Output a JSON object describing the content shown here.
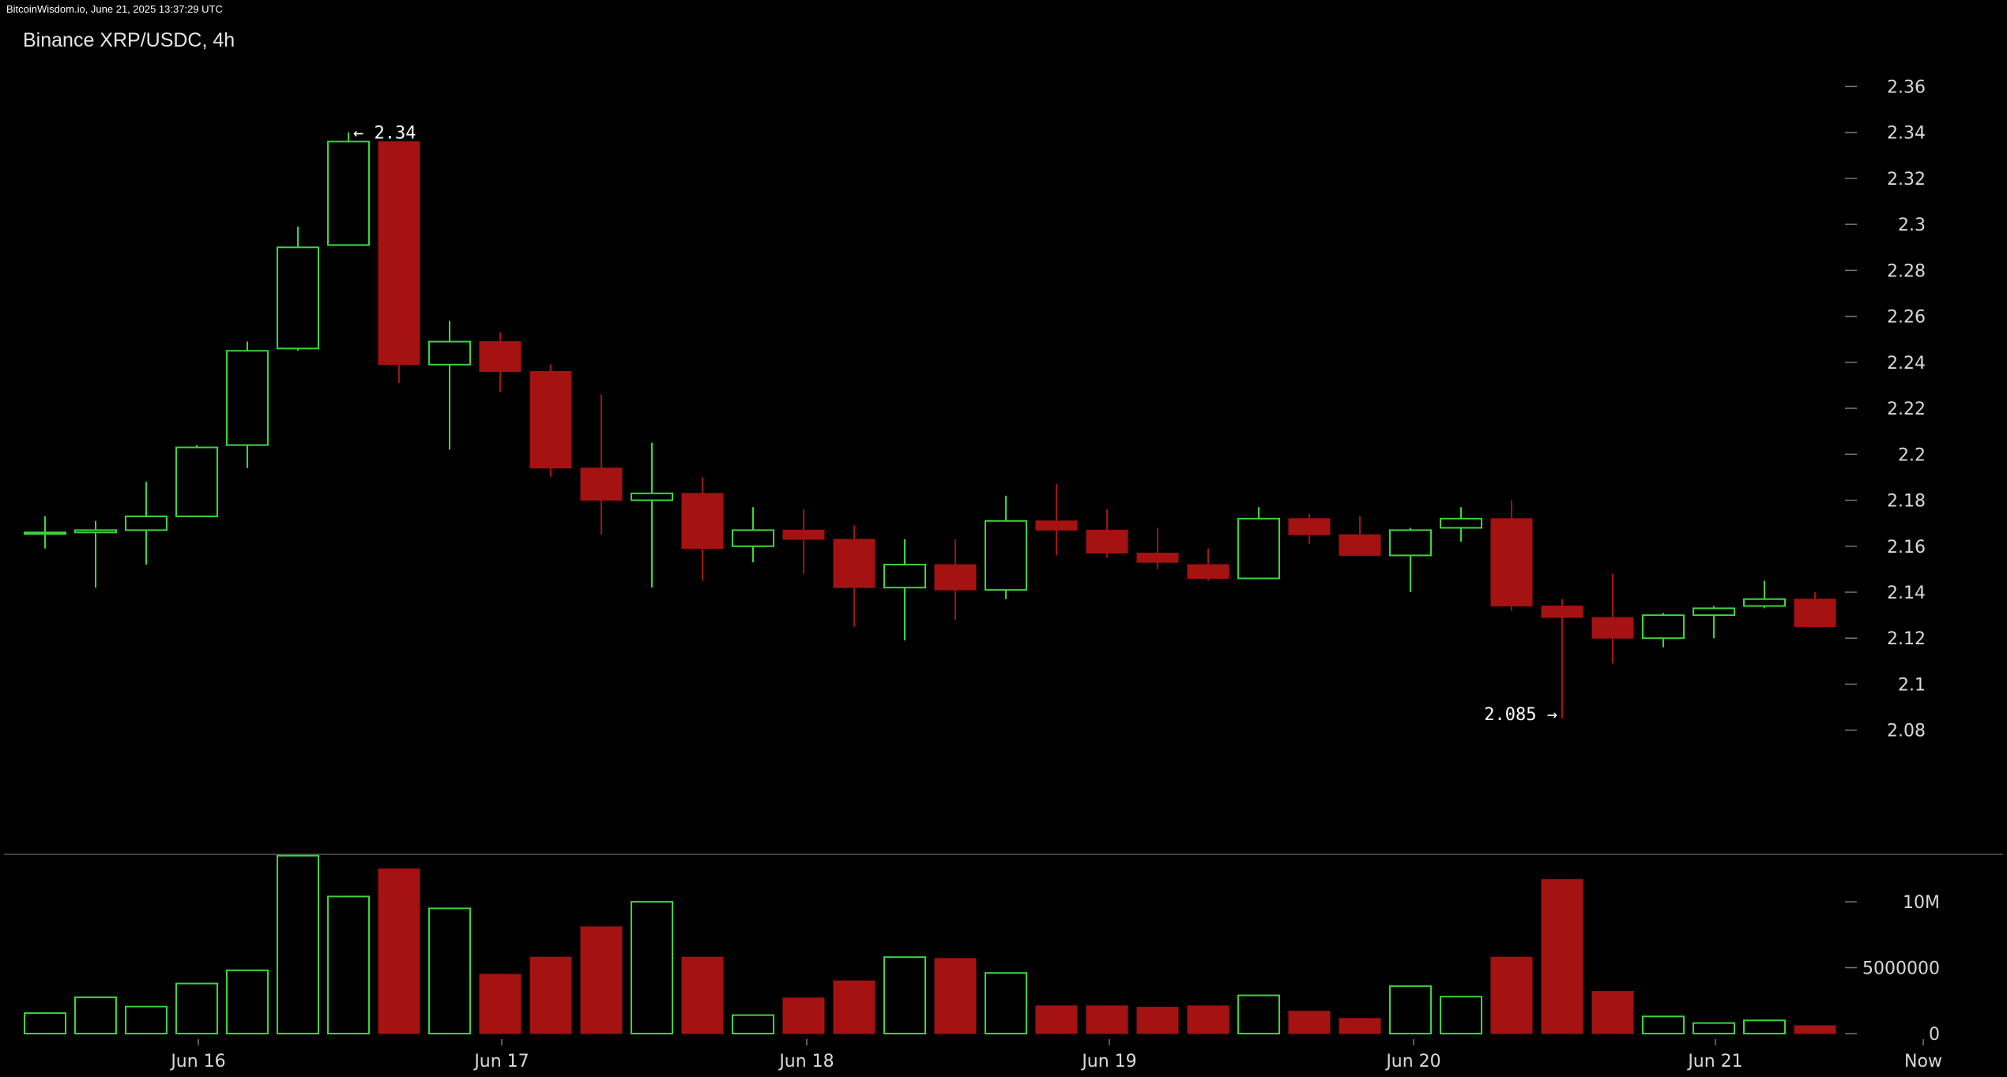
{
  "watermark": "BitcoinWisdom.io, June 21, 2025 13:37:29 UTC",
  "chart_data": {
    "type": "candlestick",
    "title": "Binance XRP/USDC, 4h",
    "colors": {
      "up": "#3bd63b",
      "down": "#a51212",
      "background": "#000000",
      "text": "#d9d9d9",
      "separator": "#555555"
    },
    "price_axis": {
      "ticks": [
        "2.36",
        "2.34",
        "2.32",
        "2.3",
        "2.28",
        "2.26",
        "2.24",
        "2.22",
        "2.2",
        "2.18",
        "2.16",
        "2.14",
        "2.12",
        "2.1",
        "2.08"
      ],
      "ylim": [
        2.055,
        2.372
      ]
    },
    "volume_axis": {
      "ticks": [
        "10M",
        "5000000",
        "0"
      ],
      "ylim": [
        0,
        13600000
      ]
    },
    "x_labels": [
      "Jun 16",
      "Jun 17",
      "Jun 18",
      "Jun 19",
      "Jun 20",
      "Jun 21",
      "Now"
    ],
    "annotations": {
      "high": "← 2.34",
      "low": "2.085 →"
    },
    "candles": [
      {
        "o": 2.166,
        "h": 2.173,
        "l": 2.159,
        "c": 2.166,
        "v": 1550000
      },
      {
        "o": 2.166,
        "h": 2.171,
        "l": 2.142,
        "c": 2.167,
        "v": 2750000
      },
      {
        "o": 2.167,
        "h": 2.188,
        "l": 2.152,
        "c": 2.173,
        "v": 2050000
      },
      {
        "o": 2.173,
        "h": 2.204,
        "l": 2.173,
        "c": 2.203,
        "v": 3800000
      },
      {
        "o": 2.204,
        "h": 2.249,
        "l": 2.194,
        "c": 2.245,
        "v": 4800000
      },
      {
        "o": 2.246,
        "h": 2.299,
        "l": 2.245,
        "c": 2.29,
        "v": 13500000
      },
      {
        "o": 2.291,
        "h": 2.34,
        "l": 2.291,
        "c": 2.336,
        "v": 10400000
      },
      {
        "o": 2.336,
        "h": 2.336,
        "l": 2.231,
        "c": 2.239,
        "v": 12500000
      },
      {
        "o": 2.239,
        "h": 2.258,
        "l": 2.202,
        "c": 2.249,
        "v": 9500000
      },
      {
        "o": 2.249,
        "h": 2.253,
        "l": 2.227,
        "c": 2.236,
        "v": 4500000
      },
      {
        "o": 2.236,
        "h": 2.239,
        "l": 2.19,
        "c": 2.194,
        "v": 5800000
      },
      {
        "o": 2.194,
        "h": 2.226,
        "l": 2.165,
        "c": 2.18,
        "v": 8100000
      },
      {
        "o": 2.18,
        "h": 2.205,
        "l": 2.142,
        "c": 2.183,
        "v": 10000000
      },
      {
        "o": 2.183,
        "h": 2.19,
        "l": 2.145,
        "c": 2.159,
        "v": 5800000
      },
      {
        "o": 2.16,
        "h": 2.177,
        "l": 2.153,
        "c": 2.167,
        "v": 1400000
      },
      {
        "o": 2.167,
        "h": 2.176,
        "l": 2.148,
        "c": 2.163,
        "v": 2700000
      },
      {
        "o": 2.163,
        "h": 2.169,
        "l": 2.125,
        "c": 2.142,
        "v": 4000000
      },
      {
        "o": 2.142,
        "h": 2.163,
        "l": 2.119,
        "c": 2.152,
        "v": 5800000
      },
      {
        "o": 2.152,
        "h": 2.163,
        "l": 2.128,
        "c": 2.141,
        "v": 5700000
      },
      {
        "o": 2.141,
        "h": 2.182,
        "l": 2.137,
        "c": 2.171,
        "v": 4600000
      },
      {
        "o": 2.171,
        "h": 2.187,
        "l": 2.156,
        "c": 2.167,
        "v": 2100000
      },
      {
        "o": 2.167,
        "h": 2.176,
        "l": 2.155,
        "c": 2.157,
        "v": 2100000
      },
      {
        "o": 2.157,
        "h": 2.168,
        "l": 2.15,
        "c": 2.153,
        "v": 2000000
      },
      {
        "o": 2.152,
        "h": 2.159,
        "l": 2.145,
        "c": 2.146,
        "v": 2100000
      },
      {
        "o": 2.146,
        "h": 2.177,
        "l": 2.146,
        "c": 2.172,
        "v": 2900000
      },
      {
        "o": 2.172,
        "h": 2.174,
        "l": 2.161,
        "c": 2.165,
        "v": 1700000
      },
      {
        "o": 2.165,
        "h": 2.173,
        "l": 2.156,
        "c": 2.156,
        "v": 1150000
      },
      {
        "o": 2.156,
        "h": 2.168,
        "l": 2.14,
        "c": 2.167,
        "v": 3600000
      },
      {
        "o": 2.168,
        "h": 2.177,
        "l": 2.162,
        "c": 2.172,
        "v": 2800000
      },
      {
        "o": 2.172,
        "h": 2.18,
        "l": 2.132,
        "c": 2.134,
        "v": 5800000
      },
      {
        "o": 2.134,
        "h": 2.137,
        "l": 2.085,
        "c": 2.129,
        "v": 11700000
      },
      {
        "o": 2.129,
        "h": 2.148,
        "l": 2.109,
        "c": 2.12,
        "v": 3200000
      },
      {
        "o": 2.12,
        "h": 2.131,
        "l": 2.116,
        "c": 2.13,
        "v": 1300000
      },
      {
        "o": 2.13,
        "h": 2.134,
        "l": 2.12,
        "c": 2.133,
        "v": 800000
      },
      {
        "o": 2.134,
        "h": 2.145,
        "l": 2.133,
        "c": 2.137,
        "v": 1000000
      },
      {
        "o": 2.137,
        "h": 2.14,
        "l": 2.125,
        "c": 2.125,
        "v": 600000
      }
    ]
  }
}
